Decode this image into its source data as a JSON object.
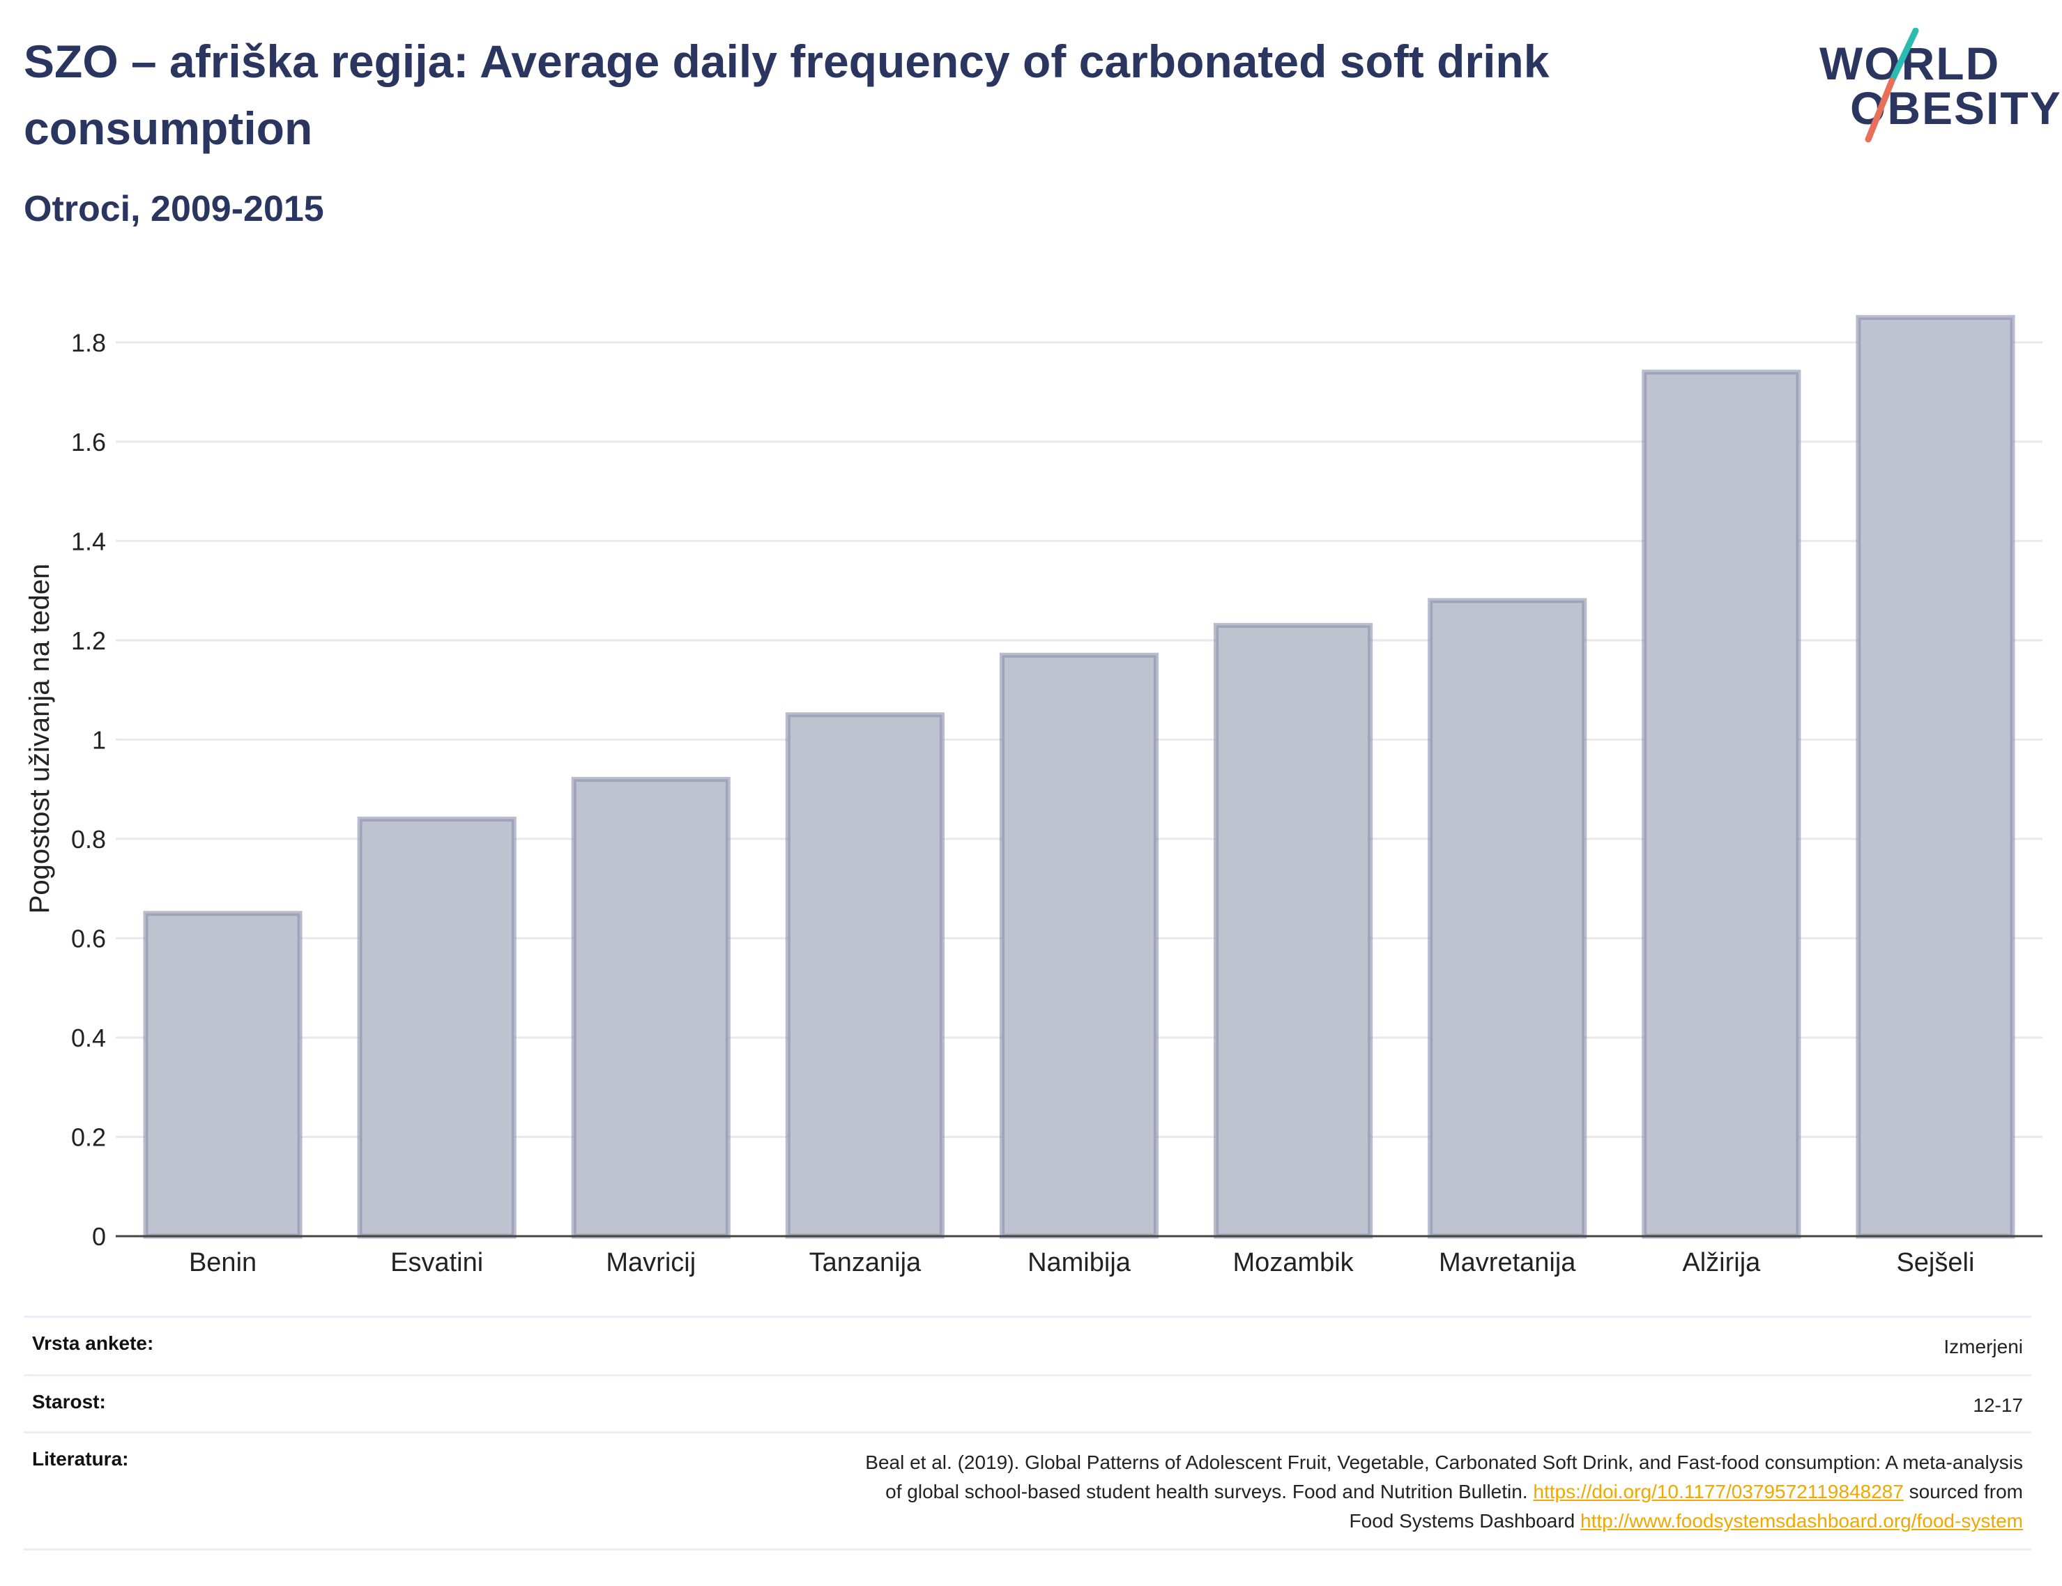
{
  "header": {
    "title": "SZO – afriška regija: Average daily frequency of carbonated soft drink consumption",
    "subtitle": "Otroci, 2009-2015"
  },
  "logo": {
    "line1": "WORLD",
    "line2": "OBESITY",
    "colors": {
      "text": "#2a3560",
      "slash_top": "#2bbbb0",
      "slash_bottom": "#e8705a"
    }
  },
  "chart_data": {
    "type": "bar",
    "title": "SZO – afriška regija: Average daily frequency of carbonated soft drink consumption",
    "subtitle": "Otroci, 2009-2015",
    "xlabel": "",
    "ylabel": "Pogostost uživanja na teden",
    "categories": [
      "Benin",
      "Esvatini",
      "Mavricij",
      "Tanzanija",
      "Namibija",
      "Mozambik",
      "Mavretanija",
      "Alžirija",
      "Sejšeli"
    ],
    "values": [
      0.65,
      0.84,
      0.92,
      1.05,
      1.17,
      1.23,
      1.28,
      1.74,
      1.85
    ],
    "ylim": [
      0,
      1.9
    ],
    "yticks": [
      0,
      0.2,
      0.4,
      0.6,
      0.8,
      1,
      1.2,
      1.4,
      1.6,
      1.8
    ],
    "ytick_labels": [
      "0",
      "0.2",
      "0.4",
      "0.6",
      "0.8",
      "1",
      "1.2",
      "1.4",
      "1.6",
      "1.8"
    ],
    "grid": true,
    "legend": "none",
    "colors": {
      "bar_fill": "#bfc2cf",
      "bar_stroke": "#8a90ab",
      "grid": "#e8e8ee",
      "axis": "#444444"
    }
  },
  "info_table": {
    "rows": [
      {
        "label": "Vrsta ankete:",
        "value": "Izmerjeni"
      },
      {
        "label": "Starost:",
        "value": "12-17"
      }
    ],
    "reference": {
      "label": "Literatura:",
      "line1": "Beal et al. (2019). Global Patterns of Adolescent Fruit, Vegetable, Carbonated Soft Drink, and Fast-food consumption: A meta-analysis",
      "line2_text": "of global school-based student health surveys. Food and Nutrition Bulletin.",
      "line2_link": "https://doi.org/10.1177/0379572119848287",
      "line2_after": "sourced from",
      "line3_text": "Food Systems Dashboard",
      "line3_link": "http://www.foodsystemsdashboard.org/food-system"
    }
  }
}
